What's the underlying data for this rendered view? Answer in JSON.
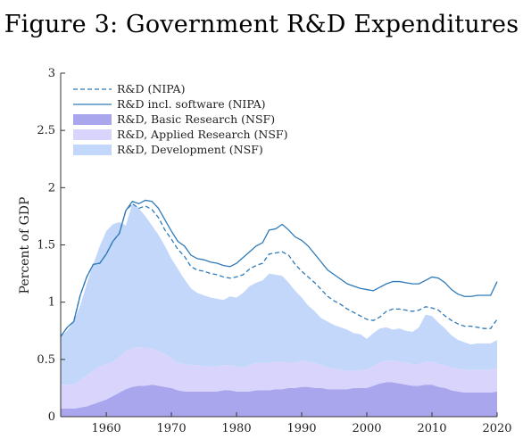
{
  "figure": {
    "title": "Figure 3: Government R&D Expenditures"
  },
  "colors": {
    "basic": "#a9a6ee",
    "applied": "#d9d4fb",
    "development": "#c3d7fb",
    "nipa_line": "#2f7ab8",
    "axis": "#333333"
  },
  "chart_data": {
    "type": "area",
    "title": "",
    "xlabel": "",
    "ylabel": "Percent of GDP",
    "xlim": [
      1953,
      2020
    ],
    "ylim": [
      0,
      3
    ],
    "x_ticks": [
      1960,
      1970,
      1980,
      1990,
      2000,
      2010,
      2020
    ],
    "y_ticks": [
      {
        "value": 0,
        "label": "0"
      },
      {
        "value": 0.5,
        "label": "0.5"
      },
      {
        "value": 1,
        "label": "1"
      },
      {
        "value": 1.5,
        "label": "1.5"
      },
      {
        "value": 2,
        "label": "2"
      },
      {
        "value": 2.5,
        "label": "2.5"
      },
      {
        "value": 3,
        "label": "3"
      }
    ],
    "grid": false,
    "legend_position": "top-left",
    "legend": [
      {
        "key": "nipa",
        "label": "R&D (NIPA)",
        "style": "dashed-line"
      },
      {
        "key": "nipa_software",
        "label": "R&D incl. software (NIPA)",
        "style": "solid-line"
      },
      {
        "key": "basic",
        "label": "R&D, Basic Research (NSF)",
        "style": "area"
      },
      {
        "key": "applied",
        "label": "R&D, Applied Research (NSF)",
        "style": "area"
      },
      {
        "key": "development",
        "label": "R&D, Development (NSF)",
        "style": "area"
      }
    ],
    "stacked_areas": {
      "x": [
        1953,
        1954,
        1955,
        1956,
        1957,
        1958,
        1959,
        1960,
        1961,
        1962,
        1963,
        1964,
        1965,
        1966,
        1967,
        1968,
        1969,
        1970,
        1971,
        1972,
        1973,
        1974,
        1975,
        1976,
        1977,
        1978,
        1979,
        1980,
        1981,
        1982,
        1983,
        1984,
        1985,
        1986,
        1987,
        1988,
        1989,
        1990,
        1991,
        1992,
        1993,
        1994,
        1995,
        1996,
        1997,
        1998,
        1999,
        2000,
        2001,
        2002,
        2003,
        2004,
        2005,
        2006,
        2007,
        2008,
        2009,
        2010,
        2011,
        2012,
        2013,
        2014,
        2015,
        2016,
        2017,
        2018,
        2019,
        2020
      ],
      "series": [
        {
          "name": "R&D, Basic Research (NSF)",
          "key": "basic",
          "values": [
            0.07,
            0.07,
            0.07,
            0.08,
            0.09,
            0.11,
            0.13,
            0.15,
            0.18,
            0.21,
            0.24,
            0.26,
            0.27,
            0.27,
            0.28,
            0.27,
            0.26,
            0.25,
            0.23,
            0.22,
            0.22,
            0.22,
            0.22,
            0.22,
            0.22,
            0.23,
            0.23,
            0.22,
            0.22,
            0.22,
            0.23,
            0.23,
            0.23,
            0.24,
            0.24,
            0.25,
            0.25,
            0.26,
            0.26,
            0.25,
            0.25,
            0.24,
            0.24,
            0.24,
            0.24,
            0.25,
            0.25,
            0.25,
            0.27,
            0.29,
            0.3,
            0.3,
            0.29,
            0.28,
            0.27,
            0.27,
            0.28,
            0.28,
            0.26,
            0.25,
            0.23,
            0.22,
            0.21,
            0.21,
            0.21,
            0.21,
            0.21,
            0.22
          ]
        },
        {
          "name": "R&D, Applied Research (NSF)",
          "key": "applied",
          "values": [
            0.21,
            0.21,
            0.21,
            0.24,
            0.27,
            0.29,
            0.31,
            0.31,
            0.3,
            0.31,
            0.33,
            0.34,
            0.34,
            0.33,
            0.32,
            0.3,
            0.29,
            0.26,
            0.24,
            0.24,
            0.23,
            0.23,
            0.22,
            0.22,
            0.22,
            0.22,
            0.22,
            0.22,
            0.21,
            0.23,
            0.24,
            0.24,
            0.24,
            0.24,
            0.24,
            0.22,
            0.22,
            0.23,
            0.22,
            0.22,
            0.2,
            0.19,
            0.18,
            0.17,
            0.16,
            0.15,
            0.16,
            0.16,
            0.17,
            0.18,
            0.19,
            0.19,
            0.19,
            0.19,
            0.19,
            0.19,
            0.2,
            0.2,
            0.2,
            0.2,
            0.2,
            0.2,
            0.2,
            0.2,
            0.2,
            0.2,
            0.2,
            0.2
          ]
        },
        {
          "name": "R&D, Development (NSF)",
          "key": "development",
          "values": [
            0.42,
            0.47,
            0.55,
            0.65,
            0.8,
            0.93,
            1.05,
            1.16,
            1.2,
            1.18,
            1.1,
            1.26,
            1.21,
            1.15,
            1.07,
            1.02,
            0.94,
            0.87,
            0.82,
            0.74,
            0.67,
            0.63,
            0.62,
            0.6,
            0.59,
            0.57,
            0.6,
            0.6,
            0.65,
            0.69,
            0.7,
            0.72,
            0.78,
            0.76,
            0.75,
            0.7,
            0.63,
            0.55,
            0.49,
            0.45,
            0.41,
            0.4,
            0.38,
            0.37,
            0.36,
            0.33,
            0.31,
            0.27,
            0.29,
            0.3,
            0.29,
            0.27,
            0.29,
            0.28,
            0.28,
            0.32,
            0.41,
            0.4,
            0.36,
            0.32,
            0.28,
            0.25,
            0.24,
            0.22,
            0.23,
            0.23,
            0.23,
            0.25
          ]
        }
      ]
    },
    "lines": {
      "x": [
        1953,
        1954,
        1955,
        1956,
        1957,
        1958,
        1959,
        1960,
        1961,
        1962,
        1963,
        1964,
        1965,
        1966,
        1967,
        1968,
        1969,
        1970,
        1971,
        1972,
        1973,
        1974,
        1975,
        1976,
        1977,
        1978,
        1979,
        1980,
        1981,
        1982,
        1983,
        1984,
        1985,
        1986,
        1987,
        1988,
        1989,
        1990,
        1991,
        1992,
        1993,
        1994,
        1995,
        1996,
        1997,
        1998,
        1999,
        2000,
        2001,
        2002,
        2003,
        2004,
        2005,
        2006,
        2007,
        2008,
        2009,
        2010,
        2011,
        2012,
        2013,
        2014,
        2015,
        2016,
        2017,
        2018,
        2019,
        2020
      ],
      "series": [
        {
          "name": "R&D (NIPA)",
          "key": "nipa",
          "dash": true,
          "values": [
            0.7,
            0.78,
            0.83,
            1.06,
            1.22,
            1.33,
            1.34,
            1.42,
            1.53,
            1.6,
            1.8,
            1.86,
            1.82,
            1.84,
            1.81,
            1.74,
            1.63,
            1.55,
            1.46,
            1.4,
            1.31,
            1.28,
            1.27,
            1.25,
            1.24,
            1.22,
            1.21,
            1.22,
            1.24,
            1.29,
            1.32,
            1.34,
            1.42,
            1.43,
            1.44,
            1.41,
            1.33,
            1.27,
            1.22,
            1.17,
            1.11,
            1.05,
            1.01,
            0.98,
            0.94,
            0.91,
            0.88,
            0.85,
            0.84,
            0.87,
            0.92,
            0.94,
            0.94,
            0.93,
            0.92,
            0.93,
            0.96,
            0.95,
            0.93,
            0.88,
            0.84,
            0.81,
            0.79,
            0.79,
            0.78,
            0.77,
            0.77,
            0.85
          ]
        },
        {
          "name": "R&D incl. software (NIPA)",
          "key": "nipa_software",
          "dash": false,
          "values": [
            0.7,
            0.78,
            0.83,
            1.06,
            1.22,
            1.33,
            1.34,
            1.42,
            1.53,
            1.6,
            1.8,
            1.88,
            1.86,
            1.89,
            1.88,
            1.82,
            1.72,
            1.62,
            1.53,
            1.49,
            1.41,
            1.38,
            1.37,
            1.35,
            1.34,
            1.32,
            1.31,
            1.34,
            1.39,
            1.44,
            1.49,
            1.52,
            1.63,
            1.64,
            1.68,
            1.63,
            1.57,
            1.54,
            1.49,
            1.42,
            1.35,
            1.28,
            1.24,
            1.2,
            1.16,
            1.14,
            1.12,
            1.11,
            1.1,
            1.13,
            1.16,
            1.18,
            1.18,
            1.17,
            1.16,
            1.16,
            1.19,
            1.22,
            1.21,
            1.17,
            1.11,
            1.07,
            1.05,
            1.05,
            1.06,
            1.06,
            1.06,
            1.18
          ]
        }
      ]
    }
  }
}
